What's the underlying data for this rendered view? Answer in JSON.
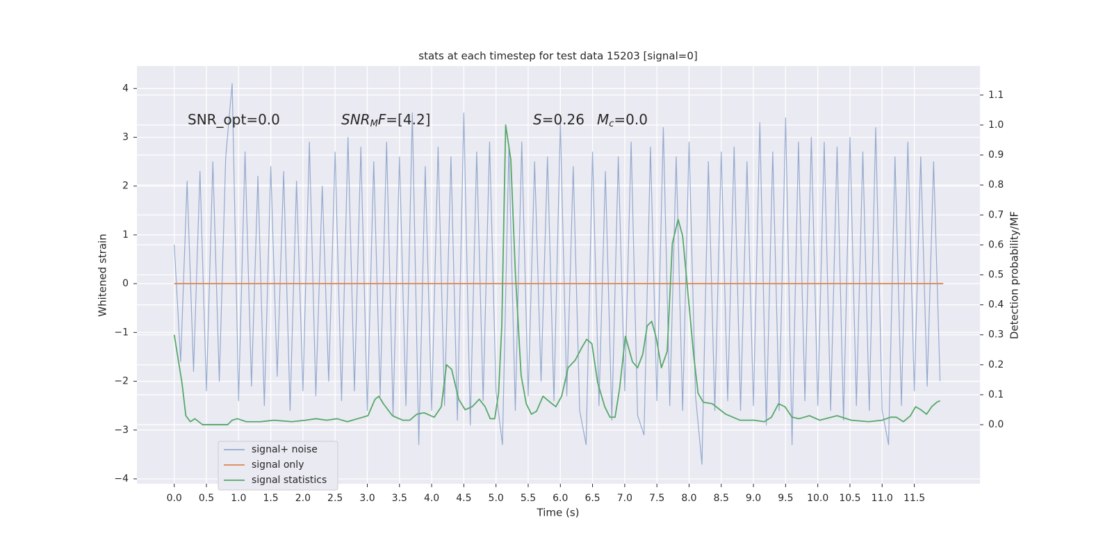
{
  "chart_data": {
    "type": "line",
    "title": "stats at each timestep for test data 15203 [signal=0]",
    "x_label": "Time (s)",
    "y_label": "Whitened strain",
    "y2_label": "Detection probability/MF",
    "xlim": [
      -0.58,
      12.52
    ],
    "ylim": [
      -4.1,
      4.46
    ],
    "y2lim": [
      -0.197,
      1.197
    ],
    "xticks": [
      {
        "value": 0,
        "label": "0.0"
      },
      0.5,
      {
        "value": 1,
        "label": "1.0"
      },
      1.5,
      {
        "value": 2,
        "label": "2.0"
      },
      2.5,
      {
        "value": 3,
        "label": "3.0"
      },
      3.5,
      {
        "value": 4,
        "label": "4.0"
      },
      4.5,
      {
        "value": 5,
        "label": "5.0"
      },
      5.5,
      {
        "value": 6,
        "label": "6.0"
      },
      6.5,
      {
        "value": 7,
        "label": "7.0"
      },
      7.5,
      {
        "value": 8,
        "label": "8.0"
      },
      8.5,
      {
        "value": 9,
        "label": "9.0"
      },
      9.5,
      {
        "value": 10,
        "label": "10.0"
      },
      10.5,
      {
        "value": 11,
        "label": "11.0"
      },
      11.5
    ],
    "yticks": [
      {
        "value": -4,
        "label": "−4"
      },
      {
        "value": -3,
        "label": "−3"
      },
      {
        "value": -2,
        "label": "−2"
      },
      {
        "value": -1,
        "label": "−1"
      },
      0,
      1,
      2,
      3,
      4
    ],
    "y2ticks": [
      {
        "value": 0,
        "label": "0.0"
      },
      0.1,
      0.2,
      0.3,
      0.4,
      0.5,
      0.6,
      0.7,
      0.8,
      0.9,
      {
        "value": 1,
        "label": "1.0"
      },
      1.1
    ],
    "grid": true,
    "legend": "lower left",
    "series": [
      {
        "name": "signal+ noise",
        "color": "#4c72b0",
        "x": [
          0,
          0.1,
          0.2,
          0.3,
          0.4,
          0.5,
          0.6,
          0.7,
          0.8,
          0.9,
          1,
          1.1,
          1.2,
          1.3,
          1.4,
          1.5,
          1.6,
          1.7,
          1.8,
          1.9,
          2,
          2.1,
          2.2,
          2.3,
          2.4,
          2.5,
          2.6,
          2.7,
          2.8,
          2.9,
          3,
          3.1,
          3.2,
          3.3,
          3.4,
          3.5,
          3.6,
          3.7,
          3.8,
          3.9,
          4,
          4.1,
          4.2,
          4.3,
          4.4,
          4.5,
          4.6,
          4.7,
          4.8,
          4.9,
          5,
          5.1,
          5.2,
          5.3,
          5.4,
          5.5,
          5.6,
          5.7,
          5.8,
          5.9,
          6,
          6.1,
          6.2,
          6.3,
          6.4,
          6.5,
          6.6,
          6.7,
          6.8,
          6.9,
          7,
          7.1,
          7.2,
          7.3,
          7.4,
          7.5,
          7.6,
          7.7,
          7.8,
          7.9,
          8,
          8.1,
          8.2,
          8.3,
          8.4,
          8.5,
          8.6,
          8.7,
          8.8,
          8.9,
          9,
          9.1,
          9.2,
          9.3,
          9.4,
          9.5,
          9.6,
          9.7,
          9.8,
          9.9,
          10,
          10.1,
          10.2,
          10.3,
          10.4,
          10.5,
          10.6,
          10.7,
          10.8,
          10.9,
          11,
          11.1,
          11.2,
          11.3,
          11.4,
          11.5,
          11.6,
          11.7,
          11.8,
          11.9
        ],
        "values": [
          0.8,
          -1.6,
          2.1,
          -1.8,
          2.3,
          -2.2,
          2.5,
          -2.0,
          2.6,
          4.1,
          -2.4,
          2.7,
          -2.1,
          2.2,
          -2.5,
          2.4,
          -1.9,
          2.3,
          -2.6,
          2.1,
          -2.2,
          2.9,
          -2.3,
          2.0,
          -2.0,
          2.7,
          -2.4,
          3.0,
          -2.2,
          2.8,
          -2.6,
          2.5,
          -2.3,
          2.9,
          -2.7,
          2.6,
          -2.5,
          3.5,
          -3.3,
          2.4,
          -2.6,
          2.8,
          -2.5,
          2.6,
          -2.8,
          3.5,
          -2.9,
          2.7,
          -2.4,
          2.9,
          -2.2,
          -3.3,
          2.8,
          -2.6,
          2.9,
          -2.3,
          2.5,
          -2.0,
          2.6,
          -2.4,
          3.3,
          -2.3,
          2.4,
          -2.6,
          -3.3,
          2.7,
          -2.5,
          2.3,
          -2.8,
          2.6,
          -2.2,
          2.9,
          -2.7,
          -3.1,
          2.8,
          -2.4,
          3.2,
          -2.5,
          2.6,
          -2.6,
          2.9,
          -2.3,
          -3.7,
          2.5,
          -2.6,
          2.7,
          -2.4,
          2.8,
          -2.6,
          2.5,
          -2.5,
          3.3,
          -2.9,
          2.7,
          -2.6,
          3.4,
          -3.3,
          2.9,
          -2.4,
          3.0,
          -2.5,
          2.9,
          -2.6,
          2.8,
          -2.8,
          3.0,
          -2.5,
          2.7,
          -2.6,
          3.2,
          -2.6,
          -3.3,
          2.6,
          -2.5,
          2.9,
          -2.2,
          2.6,
          -2.1,
          2.5,
          -2.0
        ]
      },
      {
        "name": "signal only",
        "color": "#dd8452",
        "x": [
          0,
          11.95
        ],
        "values": [
          0,
          0
        ]
      },
      {
        "name": "signal statistics",
        "color": "#55a868",
        "axis": "y2",
        "x": [
          0,
          0.12,
          0.18,
          0.25,
          0.32,
          0.44,
          0.64,
          0.83,
          0.9,
          0.98,
          1.12,
          1.34,
          1.55,
          1.83,
          2.04,
          2.2,
          2.37,
          2.53,
          2.69,
          2.85,
          3.01,
          3.12,
          3.18,
          3.25,
          3.39,
          3.55,
          3.66,
          3.77,
          3.88,
          4.04,
          4.15,
          4.23,
          4.31,
          4.42,
          4.52,
          4.63,
          4.74,
          4.83,
          4.91,
          4.98,
          5.04,
          5.09,
          5.15,
          5.23,
          5.3,
          5.39,
          5.47,
          5.55,
          5.63,
          5.73,
          5.84,
          5.93,
          6.02,
          6.12,
          6.23,
          6.34,
          6.41,
          6.49,
          6.58,
          6.69,
          6.77,
          6.85,
          6.92,
          7.01,
          7.12,
          7.2,
          7.28,
          7.35,
          7.42,
          7.49,
          7.57,
          7.66,
          7.74,
          7.83,
          7.9,
          7.98,
          8.07,
          8.14,
          8.22,
          8.36,
          8.57,
          8.79,
          9.01,
          9.17,
          9.28,
          9.39,
          9.49,
          9.6,
          9.71,
          9.87,
          10.03,
          10.3,
          10.52,
          10.79,
          11.0,
          11.13,
          11.22,
          11.33,
          11.44,
          11.52,
          11.6,
          11.69,
          11.77,
          11.85,
          11.9
        ],
        "values": [
          0.3,
          0.14,
          0.03,
          0.01,
          0.02,
          0.0,
          0.0,
          0.0,
          0.015,
          0.02,
          0.01,
          0.01,
          0.015,
          0.01,
          0.015,
          0.02,
          0.015,
          0.02,
          0.01,
          0.02,
          0.03,
          0.085,
          0.095,
          0.07,
          0.03,
          0.015,
          0.015,
          0.035,
          0.04,
          0.025,
          0.06,
          0.2,
          0.185,
          0.085,
          0.05,
          0.06,
          0.085,
          0.06,
          0.02,
          0.02,
          0.105,
          0.33,
          1.0,
          0.885,
          0.51,
          0.165,
          0.07,
          0.035,
          0.045,
          0.095,
          0.075,
          0.06,
          0.095,
          0.19,
          0.215,
          0.26,
          0.285,
          0.27,
          0.14,
          0.06,
          0.025,
          0.025,
          0.12,
          0.295,
          0.21,
          0.19,
          0.235,
          0.33,
          0.345,
          0.29,
          0.19,
          0.245,
          0.605,
          0.685,
          0.63,
          0.445,
          0.235,
          0.105,
          0.075,
          0.07,
          0.035,
          0.015,
          0.015,
          0.01,
          0.025,
          0.07,
          0.06,
          0.025,
          0.02,
          0.03,
          0.015,
          0.03,
          0.015,
          0.01,
          0.015,
          0.025,
          0.025,
          0.01,
          0.03,
          0.06,
          0.05,
          0.035,
          0.06,
          0.075,
          0.08
        ]
      }
    ],
    "annotations": [
      {
        "parts": [
          {
            "text": "SNR_opt=0.0"
          }
        ]
      },
      {
        "parts": [
          {
            "text": "SNR",
            "italic": true
          },
          {
            "text": "M",
            "italic": true,
            "sub": true
          },
          {
            "text": "F",
            "italic": true
          },
          {
            "text": "=[4.2]"
          }
        ]
      },
      {
        "parts": [
          {
            "text": "S",
            "italic": true
          },
          {
            "text": "=0.26"
          }
        ]
      },
      {
        "parts": [
          {
            "text": "M",
            "italic": true
          },
          {
            "text": "c",
            "italic": true,
            "sub": true
          },
          {
            "text": "=0.0"
          }
        ]
      }
    ]
  }
}
